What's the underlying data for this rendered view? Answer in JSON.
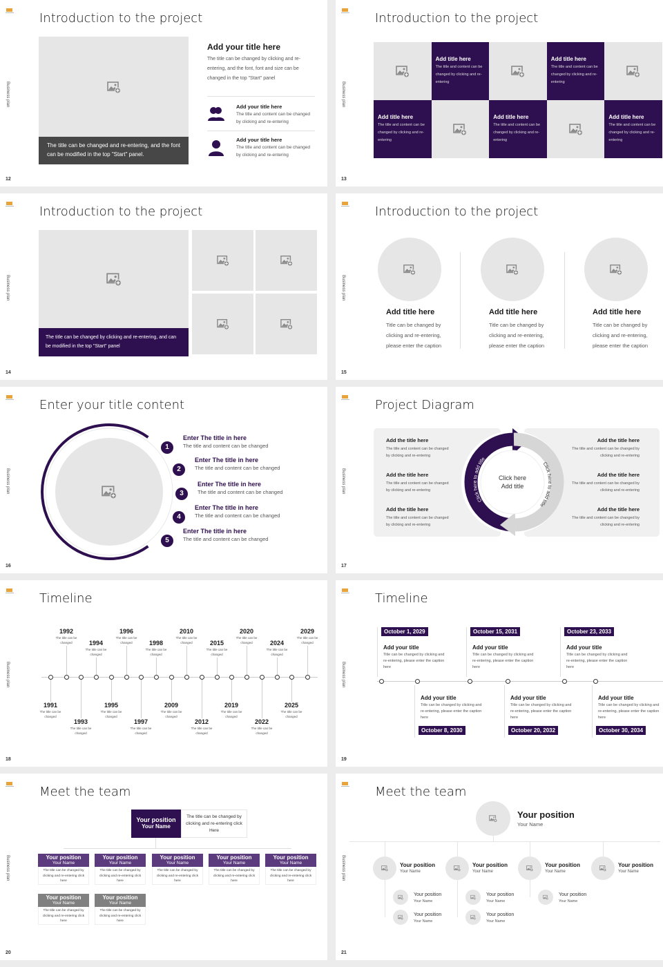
{
  "side_label": "Business plan",
  "colors": {
    "purple": "#2e0f4f",
    "purple_card": "#5b3a7e",
    "placeholder": "#e6e6e6",
    "caption_dark": "#474747",
    "card_gray": "#808080",
    "logo": "#e8a33a"
  },
  "s12": {
    "number": "12",
    "title": "Introduction to the project",
    "caption": "The title can be changed and re-entering, and the font can be modified in the top \"Start\" panel.",
    "heading": "Add your title here",
    "paragraph": "The title can be changed by clicking and re-entering, and the font, font and size can be changed in the top \"Start\" panel",
    "items": [
      {
        "icon": "people-icon",
        "title": "Add your title here",
        "text": "The title and content can be changed by clicking and re-entering"
      },
      {
        "icon": "person-icon",
        "title": "Add your title here",
        "text": "The title and content can be changed by clicking and re-entering"
      }
    ]
  },
  "s13": {
    "number": "13",
    "title": "Introduction to the project",
    "cells": [
      {
        "type": "image"
      },
      {
        "type": "text",
        "title": "Add title here",
        "text": "The title and content can be changed by clicking and re-entering"
      },
      {
        "type": "image"
      },
      {
        "type": "text",
        "title": "Add title here",
        "text": "The title and content can be changed by clicking and re-entering"
      },
      {
        "type": "image"
      },
      {
        "type": "text",
        "title": "Add title here",
        "text": "The title and content can be changed by clicking and re-entering"
      },
      {
        "type": "image"
      },
      {
        "type": "text",
        "title": "Add title here",
        "text": "The title and content can be changed by clicking and re-entering"
      },
      {
        "type": "image"
      },
      {
        "type": "text",
        "title": "Add title here",
        "text": "The title and content can be changed by clicking and re-entering"
      }
    ]
  },
  "s14": {
    "number": "14",
    "title": "Introduction to the project",
    "caption": "The title can be changed by clicking and re-entering, and can be modified in the top \"Start\" panel"
  },
  "s15": {
    "number": "15",
    "title": "Introduction to the project",
    "items": [
      {
        "title": "Add title here",
        "text": "Title can be changed by clicking and re-entering, please enter the caption"
      },
      {
        "title": "Add title here",
        "text": "Title can be changed by clicking and re-entering, please enter the caption"
      },
      {
        "title": "Add title here",
        "text": "Title can be changed by clicking and re-entering, please enter the caption"
      }
    ]
  },
  "s16": {
    "number": "16",
    "title": "Enter your title content",
    "items": [
      {
        "n": "1",
        "title": "Enter The title in here",
        "text": "The title and content can be changed"
      },
      {
        "n": "2",
        "title": "Enter The title in here",
        "text": "The title and content can be changed"
      },
      {
        "n": "3",
        "title": "Enter The title in here",
        "text": "The title and content can be changed"
      },
      {
        "n": "4",
        "title": "Enter The title in here",
        "text": "The title and content can be changed"
      },
      {
        "n": "5",
        "title": "Enter The title in here",
        "text": "The title and content can be changed"
      }
    ]
  },
  "s17": {
    "number": "17",
    "title": "Project Diagram",
    "center": [
      "Click here",
      "Add title"
    ],
    "arc_left": "Click here to add title",
    "arc_right": "Click here to add title",
    "left": [
      {
        "title": "Add the title here",
        "text": "The title and content can be changed by clicking and re-entering"
      },
      {
        "title": "Add the title here",
        "text": "The title and content can be changed by clicking and re-entering"
      },
      {
        "title": "Add the title here",
        "text": "The title and content can be changed by clicking and re-entering"
      }
    ],
    "right": [
      {
        "title": "Add the title here",
        "text": "The title and content can be changed by clicking and re-entering"
      },
      {
        "title": "Add the title here",
        "text": "The title and content can be changed by clicking and re-entering"
      },
      {
        "title": "Add the title here",
        "text": "The title and content can be changed by clicking and re-entering"
      }
    ]
  },
  "s18": {
    "number": "18",
    "title": "Timeline",
    "caption": "The title can be changed",
    "top": [
      "1992",
      "1994",
      "1996",
      "1998",
      "2010",
      "2015",
      "2020",
      "2024",
      "2029"
    ],
    "bottom": [
      "1991",
      "1993",
      "1995",
      "1997",
      "2009",
      "2012",
      "2019",
      "2022",
      "2025"
    ]
  },
  "s19": {
    "number": "19",
    "title": "Timeline",
    "entries": [
      {
        "date": "October 1, 2029",
        "title": "Add your title",
        "text": "Title can be changed by clicking and re-entering, please enter the caption here"
      },
      {
        "date": "October 8, 2030",
        "title": "Add your title",
        "text": "Title can be changed by clicking and re-entering, please enter the caption here"
      },
      {
        "date": "October 15, 2031",
        "title": "Add your title",
        "text": "Title can be changed by clicking and re-entering, please enter the caption here"
      },
      {
        "date": "October 20, 2032",
        "title": "Add your title",
        "text": "Title can be changed by clicking and re-entering, please enter the caption here"
      },
      {
        "date": "October 23, 2033",
        "title": "Add your title",
        "text": "Title can be changed by clicking and re-entering, please enter the caption here"
      },
      {
        "date": "October 30, 2034",
        "title": "Add your title",
        "text": "Title can be changed by clicking and re-entering, please enter the caption here"
      }
    ]
  },
  "s20": {
    "number": "20",
    "title": "Meet the team",
    "leader": {
      "position": "Your position",
      "name": "Your Name",
      "text": "The title can be changed by clicking and re-entering click Here"
    },
    "members": [
      {
        "position": "Your position",
        "name": "Your Name",
        "text": "The title can be changed by clicking and re-entering click here"
      },
      {
        "position": "Your position",
        "name": "Your Name",
        "text": "The title can be changed by clicking and re-entering click here"
      },
      {
        "position": "Your position",
        "name": "Your Name",
        "text": "The title can be changed by clicking and re-entering click here"
      },
      {
        "position": "Your position",
        "name": "Your Name",
        "text": "The title can be changed by clicking and re-entering click here"
      },
      {
        "position": "Your position",
        "name": "Your Name",
        "text": "The title can be changed by clicking and re-entering click here"
      },
      {
        "position": "Your position",
        "name": "Your Name",
        "text": "The title can be changed by clicking and re-entering click here"
      },
      {
        "position": "Your position",
        "name": "Your Name",
        "text": "The title can be changed by clicking and re-entering click here"
      }
    ]
  },
  "s21": {
    "number": "21",
    "title": "Meet the team",
    "leader": {
      "position": "Your position",
      "name": "Your Name"
    },
    "members": [
      {
        "position": "Your position",
        "name": "Your Name"
      },
      {
        "position": "Your position",
        "name": "Your Name"
      },
      {
        "position": "Your position",
        "name": "Your Name"
      },
      {
        "position": "Your position",
        "name": "Your Name"
      }
    ],
    "subs": [
      {
        "position": "Your position",
        "name": "Your Name"
      },
      {
        "position": "Your position",
        "name": "Your Name"
      },
      {
        "position": "Your position",
        "name": "Your Name"
      },
      {
        "position": "Your position",
        "name": "Your Name"
      },
      {
        "position": "Your position",
        "name": "Your Name"
      }
    ]
  }
}
